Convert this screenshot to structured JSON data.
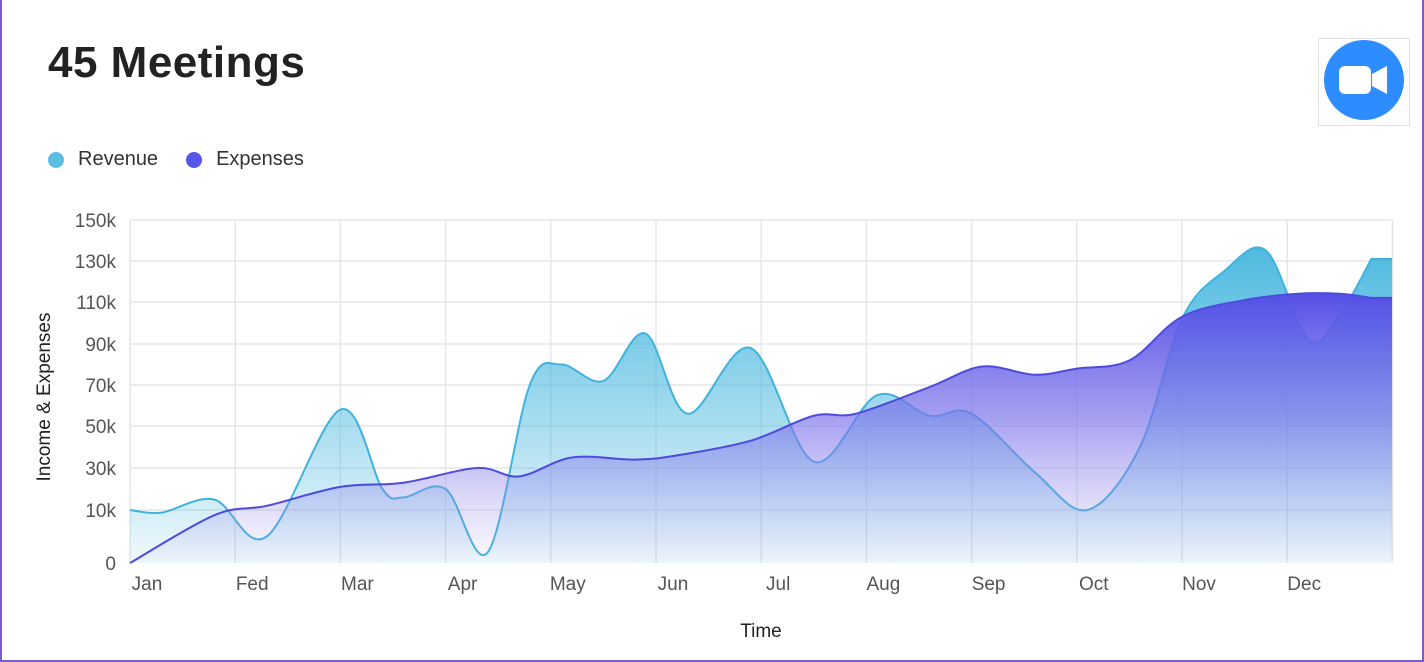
{
  "header": {
    "title": "45 Meetings",
    "icon": "video-camera-icon",
    "icon_color": "#2D8CFF"
  },
  "legend": [
    {
      "label": "Revenue",
      "color": "#5BC0E0"
    },
    {
      "label": "Expenses",
      "color": "#5656E8"
    }
  ],
  "chart_data": {
    "type": "area",
    "xlabel": "Time",
    "ylabel": "Income & Expenses",
    "ylim": [
      0,
      150000
    ],
    "y_ticks": [
      {
        "value": 0,
        "label": "0"
      },
      {
        "value": 10000,
        "label": "10k"
      },
      {
        "value": 30000,
        "label": "30k"
      },
      {
        "value": 50000,
        "label": "50k"
      },
      {
        "value": 70000,
        "label": "70k"
      },
      {
        "value": 90000,
        "label": "90k"
      },
      {
        "value": 110000,
        "label": "110k"
      },
      {
        "value": 130000,
        "label": "130k"
      },
      {
        "value": 150000,
        "label": "150k"
      }
    ],
    "categories": [
      "Jan",
      "Fed",
      "Mar",
      "Apr",
      "May",
      "Jun",
      "Jul",
      "Aug",
      "Sep",
      "Oct",
      "Nov",
      "Dec"
    ],
    "grid": true,
    "legend_position": "top-left",
    "series": [
      {
        "name": "Revenue",
        "color": "#5BC0E0",
        "points": [
          [
            0.0,
            10000
          ],
          [
            0.3,
            9500
          ],
          [
            0.8,
            15000
          ],
          [
            1.3,
            5000
          ],
          [
            2.0,
            58000
          ],
          [
            2.4,
            20000
          ],
          [
            2.6,
            16000
          ],
          [
            3.0,
            20000
          ],
          [
            3.4,
            2000
          ],
          [
            3.8,
            70000
          ],
          [
            4.1,
            80000
          ],
          [
            4.5,
            72000
          ],
          [
            4.9,
            95000
          ],
          [
            5.3,
            56000
          ],
          [
            5.9,
            88000
          ],
          [
            6.5,
            33000
          ],
          [
            7.1,
            65000
          ],
          [
            7.6,
            55000
          ],
          [
            8.0,
            56000
          ],
          [
            8.6,
            28000
          ],
          [
            9.1,
            10000
          ],
          [
            9.6,
            40000
          ],
          [
            10.0,
            102000
          ],
          [
            10.4,
            125000
          ],
          [
            10.8,
            135000
          ],
          [
            11.2,
            92000
          ],
          [
            11.5,
            104000
          ],
          [
            11.8,
            131000
          ]
        ]
      },
      {
        "name": "Expenses",
        "color": "#5656E8",
        "points": [
          [
            0.0,
            0
          ],
          [
            0.8,
            9000
          ],
          [
            1.3,
            12000
          ],
          [
            2.0,
            21000
          ],
          [
            2.6,
            23000
          ],
          [
            3.3,
            30000
          ],
          [
            3.7,
            26000
          ],
          [
            4.2,
            35000
          ],
          [
            4.8,
            34000
          ],
          [
            5.2,
            36000
          ],
          [
            5.9,
            43000
          ],
          [
            6.5,
            55000
          ],
          [
            6.9,
            56000
          ],
          [
            7.6,
            69000
          ],
          [
            8.1,
            79000
          ],
          [
            8.6,
            75000
          ],
          [
            9.0,
            78000
          ],
          [
            9.5,
            82000
          ],
          [
            10.0,
            103000
          ],
          [
            10.6,
            111000
          ],
          [
            11.1,
            114000
          ],
          [
            11.5,
            114000
          ],
          [
            11.8,
            112000
          ]
        ]
      }
    ]
  }
}
